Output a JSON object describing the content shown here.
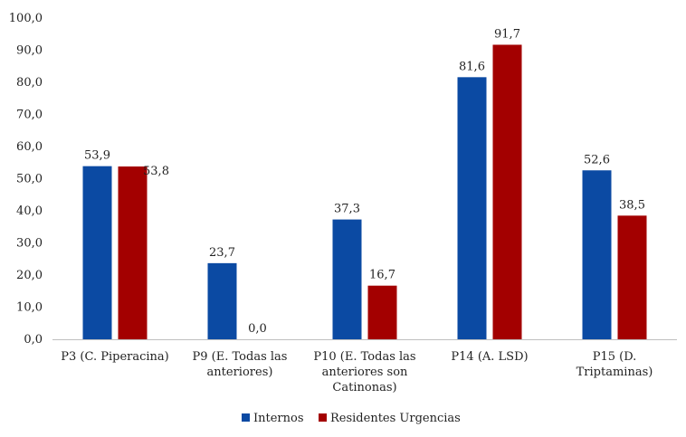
{
  "chart_data": {
    "type": "bar",
    "title": "",
    "xlabel": "",
    "ylabel": "",
    "ylim": [
      0,
      100
    ],
    "ytick_step": 10,
    "ytick_labels": [
      "0,0",
      "10,0",
      "20,0",
      "30,0",
      "40,0",
      "50,0",
      "60,0",
      "70,0",
      "80,0",
      "90,0",
      "100,0"
    ],
    "grid": false,
    "legend_position": "bottom",
    "categories": [
      [
        "P3 (C.   Piperacina)"
      ],
      [
        "P9 (E.   Todas las",
        "anteriores)"
      ],
      [
        "P10 (E.   Todas las",
        "anteriores son",
        "Catinonas)"
      ],
      [
        "P14 (A.   LSD)"
      ],
      [
        "P15 (D.",
        "Triptaminas)"
      ]
    ],
    "series": [
      {
        "name": "Internos",
        "color": "#0b4aa3",
        "values": [
          53.9,
          23.7,
          37.3,
          81.6,
          52.6
        ],
        "labels": [
          "53,9",
          "23,7",
          "37,3",
          "81,6",
          "52,6"
        ]
      },
      {
        "name": "Residentes Urgencias",
        "color": "#a30000",
        "values": [
          53.8,
          0.0,
          16.7,
          91.7,
          38.5
        ],
        "labels": [
          "53,8",
          "0,0",
          "16,7",
          "91,7",
          "38,5"
        ]
      }
    ]
  }
}
